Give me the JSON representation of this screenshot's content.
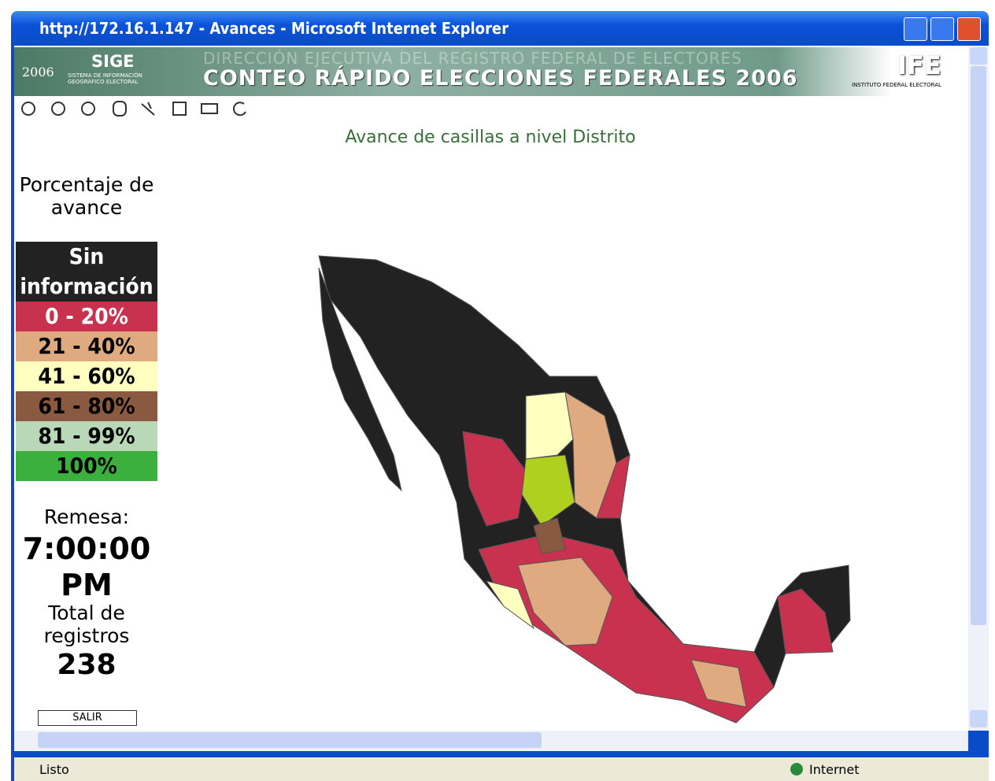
{
  "window": {
    "title": "http://172.16.1.147 - Avances - Microsoft Internet Explorer"
  },
  "banner": {
    "year": "2006",
    "sige": "SIGE",
    "sige_sub": "SISTEMA DE INFORMACIÓN GEOGRÁFICO ELECTORAL",
    "top_line": "DIRECCIÓN EJECUTIVA DEL REGISTRO FEDERAL DE ELECTORES",
    "main_line": "CONTEO RÁPIDO ELECCIONES FEDERALES 2006",
    "ife": "IFE",
    "ife_sub": "INSTITUTO FEDERAL ELECTORAL"
  },
  "map": {
    "title": "Avance de casillas a nivel Distrito"
  },
  "legend": {
    "title": "Porcentaje de avance",
    "items": [
      {
        "label": "Sin información",
        "color": "#222222",
        "text_color": "#ffffff"
      },
      {
        "label": "0 - 20%",
        "color": "#c8324f",
        "text_color": "#ffffff"
      },
      {
        "label": "21 - 40%",
        "color": "#e0aa80",
        "text_color": "#000000"
      },
      {
        "label": "41 - 60%",
        "color": "#ffffc0",
        "text_color": "#000000"
      },
      {
        "label": "61 - 80%",
        "color": "#8a5a40",
        "text_color": "#000000"
      },
      {
        "label": "81 - 99%",
        "color": "#b8d8b8",
        "text_color": "#000000"
      },
      {
        "label": "100%",
        "color": "#3cb03c",
        "text_color": "#000000"
      }
    ]
  },
  "info": {
    "remesa_label": "Remesa:",
    "remesa_time": "7:00:00 PM",
    "total_label": "Total de registros",
    "total_value": "238",
    "exit": "SALIR"
  },
  "status": {
    "text": "Listo",
    "zone": "Internet"
  }
}
